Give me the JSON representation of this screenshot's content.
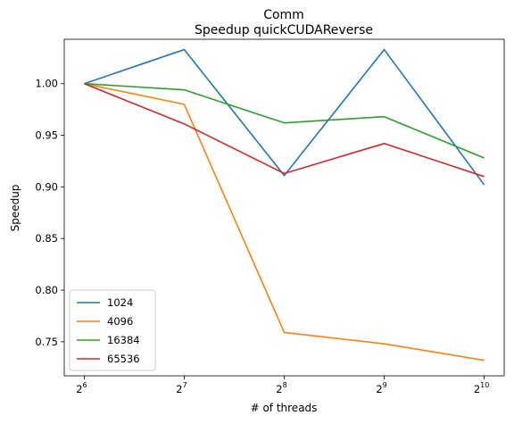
{
  "chart_data": {
    "type": "line",
    "title": "Comm",
    "subtitle": "Speedup quickCUDAReverse",
    "xlabel": "# of threads",
    "ylabel": "Speedup",
    "x_scale": "log2",
    "x": [
      64,
      128,
      256,
      512,
      1024
    ],
    "x_tick_labels": [
      {
        "base": "2",
        "exp": "6"
      },
      {
        "base": "2",
        "exp": "7"
      },
      {
        "base": "2",
        "exp": "8"
      },
      {
        "base": "2",
        "exp": "9"
      },
      {
        "base": "2",
        "exp": "10"
      }
    ],
    "y_ticks": [
      "0.75",
      "0.80",
      "0.85",
      "0.90",
      "0.95",
      "1.00"
    ],
    "ylim": [
      0.717,
      1.043
    ],
    "grid": false,
    "legend_position": "lower left",
    "series": [
      {
        "name": "1024",
        "color": "#1f77b4",
        "values": [
          1.0,
          1.033,
          0.911,
          1.033,
          0.902
        ]
      },
      {
        "name": "4096",
        "color": "#ff7f0e",
        "values": [
          1.0,
          0.98,
          0.759,
          0.748,
          0.732
        ]
      },
      {
        "name": "16384",
        "color": "#2ca02c",
        "values": [
          1.0,
          0.994,
          0.962,
          0.968,
          0.928
        ]
      },
      {
        "name": "65536",
        "color": "#d62728",
        "values": [
          1.0,
          0.961,
          0.913,
          0.942,
          0.91
        ]
      }
    ]
  }
}
